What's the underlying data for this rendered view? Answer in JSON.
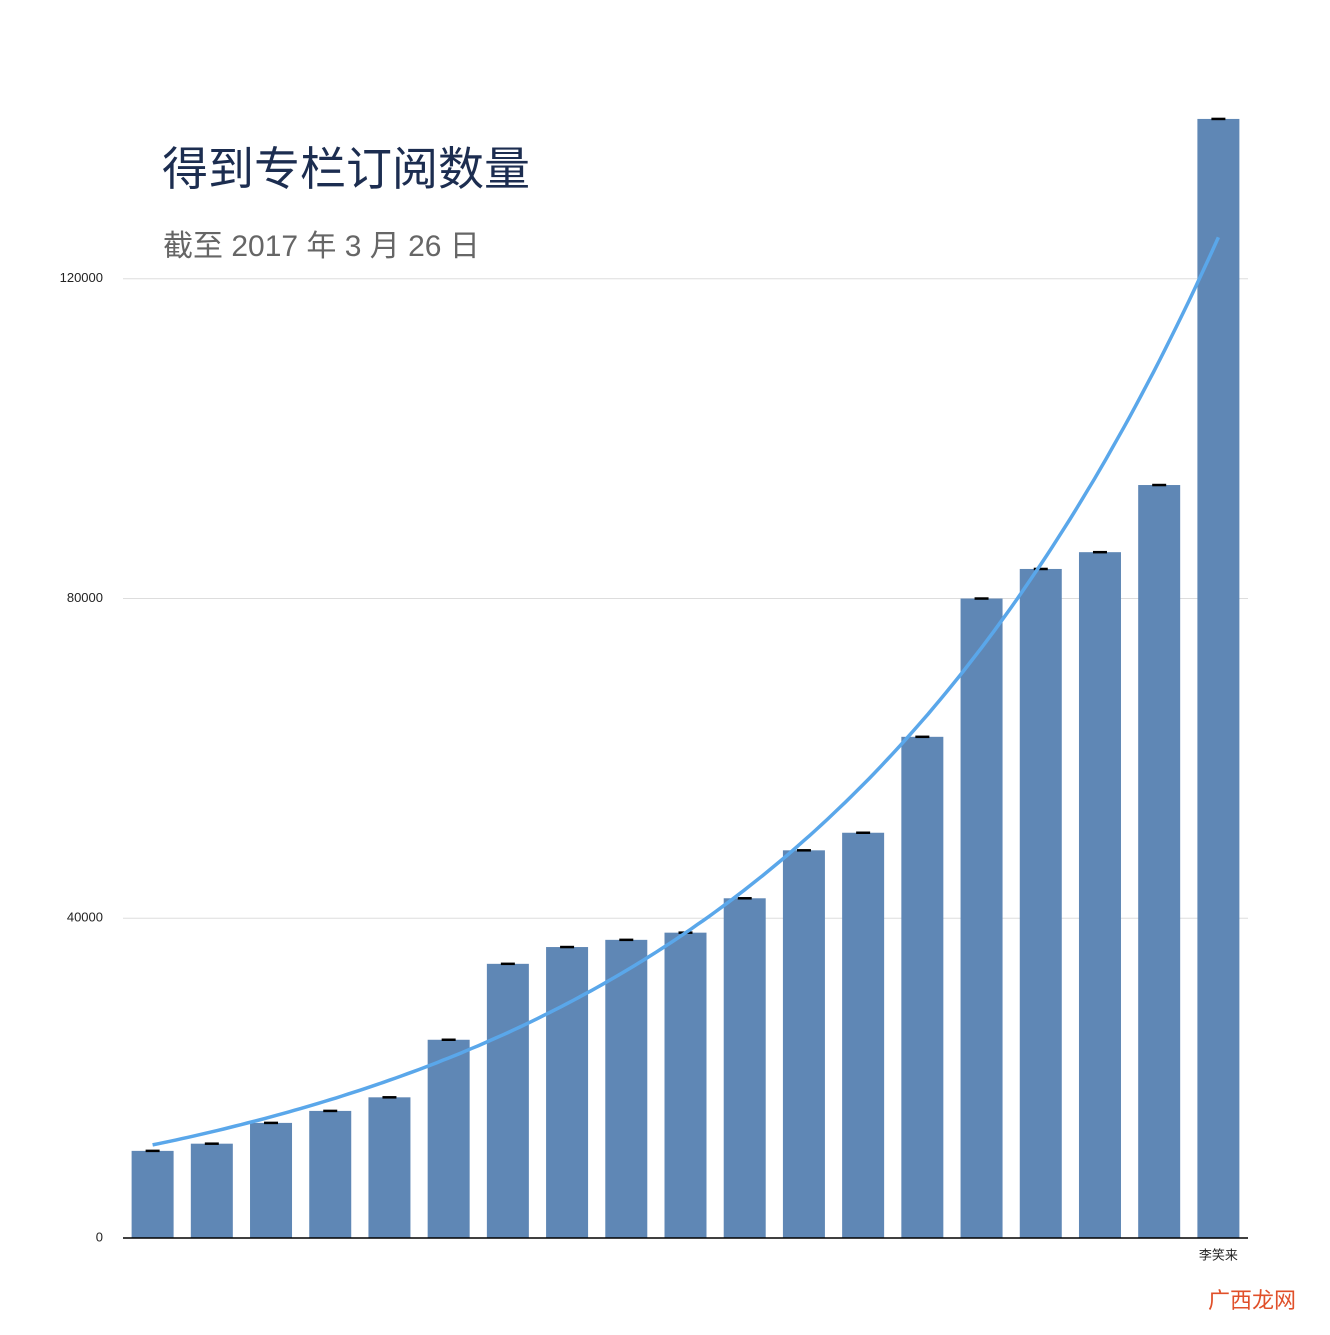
{
  "chart_data": {
    "type": "bar",
    "title": "得到专栏订阅数量",
    "subtitle": "截至 2017 年 3 月 26 日",
    "categories": [
      null,
      null,
      null,
      null,
      null,
      null,
      null,
      null,
      null,
      null,
      null,
      null,
      null,
      null,
      null,
      null,
      null,
      null,
      "李笑来"
    ],
    "values": [
      10900,
      11800,
      14400,
      15900,
      17600,
      24800,
      34300,
      36400,
      37300,
      38200,
      42500,
      48500,
      50700,
      62700,
      80000,
      83700,
      85800,
      94200,
      140000
    ],
    "color": "#5f87b5",
    "trendline": "exponential",
    "trendline_color": "#5aa7ea",
    "ylim": [
      0,
      150000
    ],
    "yticks": [
      0,
      40000,
      80000,
      120000
    ],
    "grid": true,
    "watermark": "广西龙网"
  }
}
